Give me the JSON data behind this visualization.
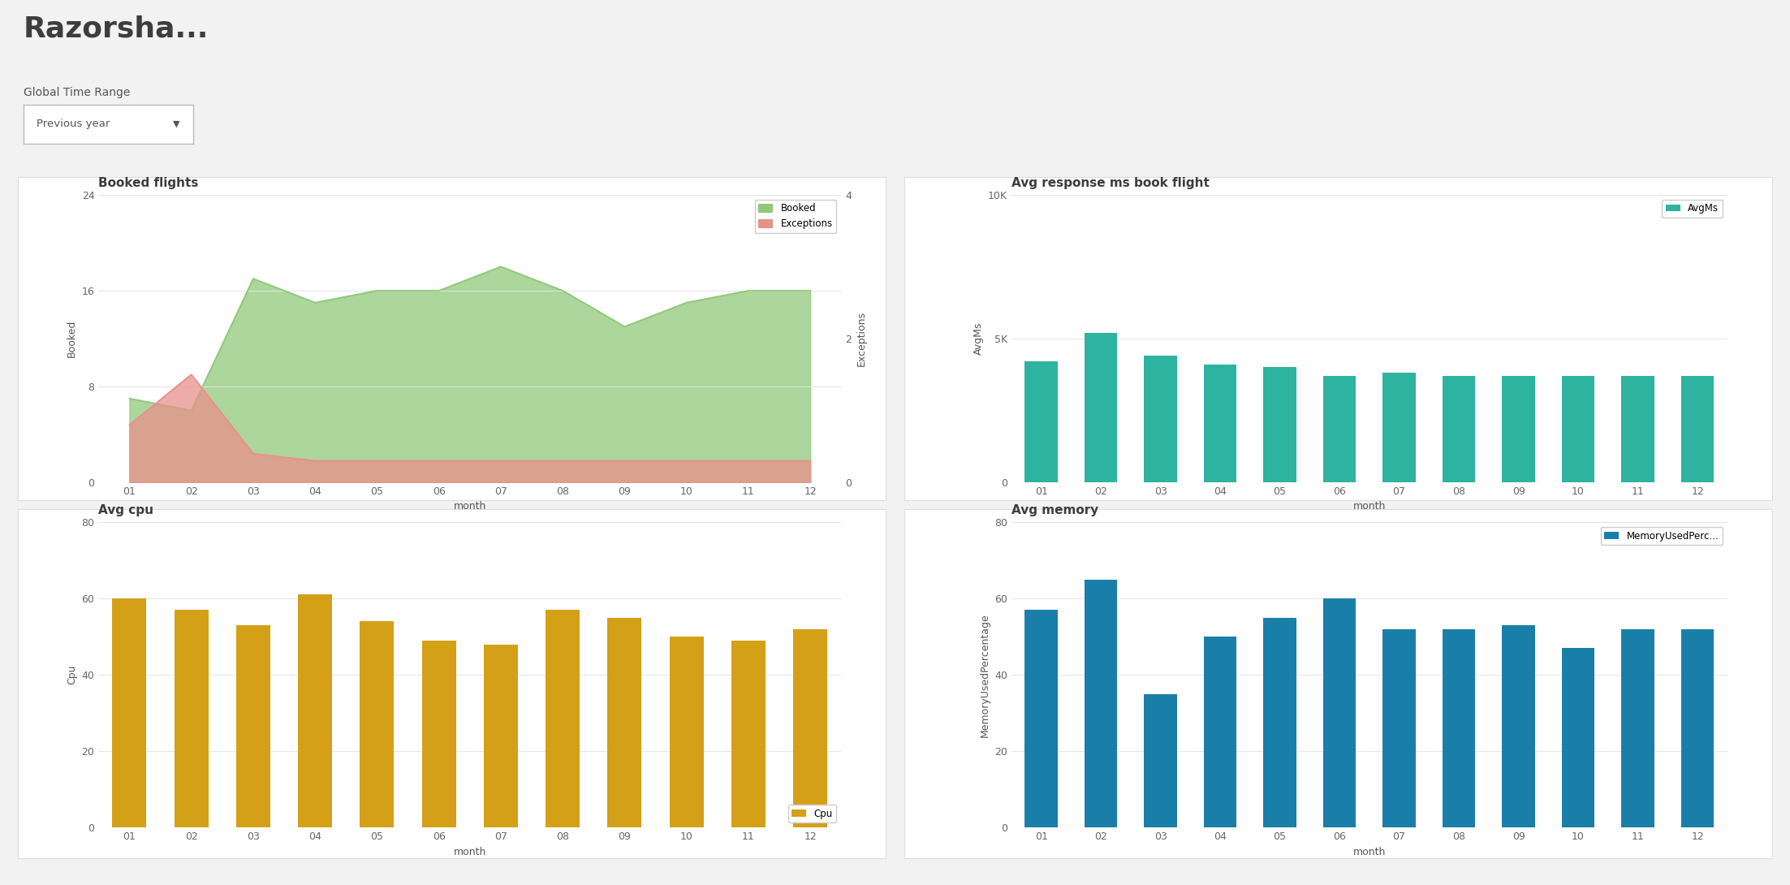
{
  "title": "Razorsha...",
  "subtitle": "Global Time Range",
  "dropdown": "Previous year",
  "bg_color": "#f2f2f2",
  "panel_bg": "#ffffff",
  "months": [
    "01",
    "02",
    "03",
    "04",
    "05",
    "06",
    "07",
    "08",
    "09",
    "10",
    "11",
    "12"
  ],
  "booked_title": "Booked flights",
  "booked_ylabel": "Booked",
  "booked_ylabel2": "Exceptions",
  "booked_values": [
    7,
    6,
    17,
    15,
    16,
    16,
    18,
    16,
    13,
    15,
    16,
    16
  ],
  "exceptions_values": [
    0.8,
    1.5,
    0.4,
    0.3,
    0.3,
    0.3,
    0.3,
    0.3,
    0.3,
    0.3,
    0.3,
    0.3
  ],
  "booked_color": "#90c97a",
  "exceptions_color": "#e8918a",
  "booked_ylim": [
    0,
    24
  ],
  "exceptions_ylim": [
    0,
    4
  ],
  "booked_yticks": [
    0,
    8,
    16,
    24
  ],
  "booked_ytick_labels": [
    "0",
    "8",
    "16",
    "24"
  ],
  "exceptions_yticks": [
    0,
    2,
    4
  ],
  "avgms_title": "Avg response ms book flight",
  "avgms_ylabel": "AvgMs",
  "avgms_values": [
    4200,
    5200,
    4400,
    4100,
    4000,
    3700,
    3800,
    3700,
    3700,
    3700,
    3700,
    3700
  ],
  "avgms_color": "#2db3a0",
  "avgms_ylim": [
    0,
    10000
  ],
  "avgms_yticks": [
    0,
    5000,
    10000
  ],
  "avgms_ytick_labels": [
    "0",
    "5K",
    "10K"
  ],
  "cpu_title": "Avg cpu",
  "cpu_ylabel": "Cpu",
  "cpu_values": [
    60,
    57,
    53,
    61,
    54,
    49,
    48,
    57,
    55,
    50,
    49,
    52
  ],
  "cpu_color": "#d4a017",
  "cpu_ylim": [
    0,
    80
  ],
  "cpu_yticks": [
    0,
    20,
    40,
    60,
    80
  ],
  "mem_title": "Avg memory",
  "mem_ylabel": "MemoryUsedPercentage",
  "mem_values": [
    57,
    65,
    35,
    50,
    55,
    60,
    52,
    52,
    53,
    47,
    52,
    52
  ],
  "mem_color": "#1a7fa8",
  "mem_ylim": [
    0,
    80
  ],
  "mem_yticks": [
    0,
    20,
    40,
    60,
    80
  ],
  "axis_label_color": "#555555",
  "title_color": "#3d3d3d",
  "grid_color": "#e5e5e5",
  "tick_color": "#666666",
  "legend_booked": "Booked",
  "legend_exceptions": "Exceptions",
  "legend_avgms": "AvgMs",
  "legend_cpu": "Cpu",
  "legend_mem": "MemoryUsedPerc..."
}
